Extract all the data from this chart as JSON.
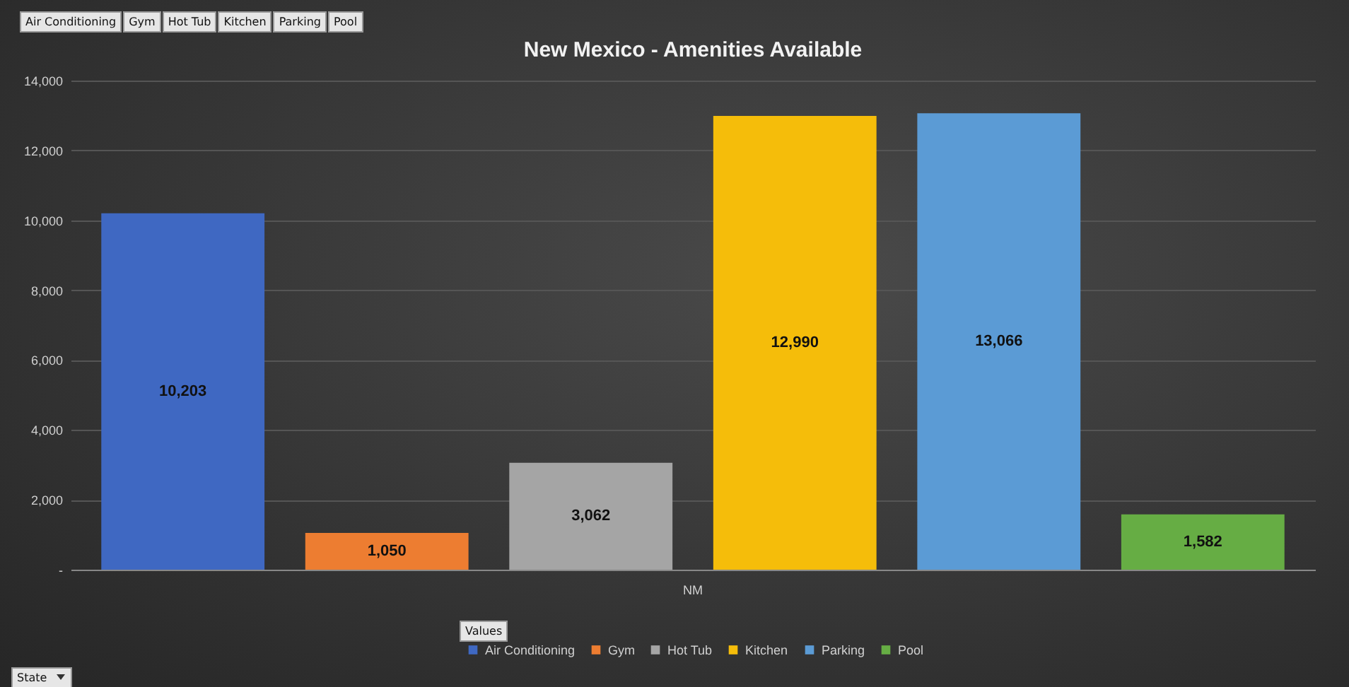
{
  "chart_data": {
    "type": "bar",
    "title": "New Mexico - Amenities Available",
    "categories": [
      "NM"
    ],
    "series": [
      {
        "name": "Air Conditioning",
        "color": "#3f68c2",
        "values": [
          10203
        ],
        "value_labels": [
          "10,203"
        ]
      },
      {
        "name": "Gym",
        "color": "#ed7d31",
        "values": [
          1050
        ],
        "value_labels": [
          "1,050"
        ]
      },
      {
        "name": "Hot Tub",
        "color": "#a5a5a5",
        "values": [
          3062
        ],
        "value_labels": [
          "3,062"
        ]
      },
      {
        "name": "Kitchen",
        "color": "#f5bd0a",
        "values": [
          12990
        ],
        "value_labels": [
          "12,990"
        ]
      },
      {
        "name": "Parking",
        "color": "#5b9bd5",
        "values": [
          13066
        ],
        "value_labels": [
          "13,066"
        ]
      },
      {
        "name": "Pool",
        "color": "#66ad44",
        "values": [
          1582
        ],
        "value_labels": [
          "1,582"
        ]
      }
    ],
    "ylim": [
      0,
      14000
    ],
    "yticks": [
      {
        "value": 0,
        "label": "-"
      },
      {
        "value": 2000,
        "label": "2,000"
      },
      {
        "value": 4000,
        "label": "4,000"
      },
      {
        "value": 6000,
        "label": "6,000"
      },
      {
        "value": 8000,
        "label": "8,000"
      },
      {
        "value": 10000,
        "label": "10,000"
      },
      {
        "value": 12000,
        "label": "12,000"
      },
      {
        "value": 14000,
        "label": "14,000"
      }
    ],
    "grid": "y",
    "legend": "bottom",
    "annotations": [
      "Values",
      "State"
    ]
  }
}
